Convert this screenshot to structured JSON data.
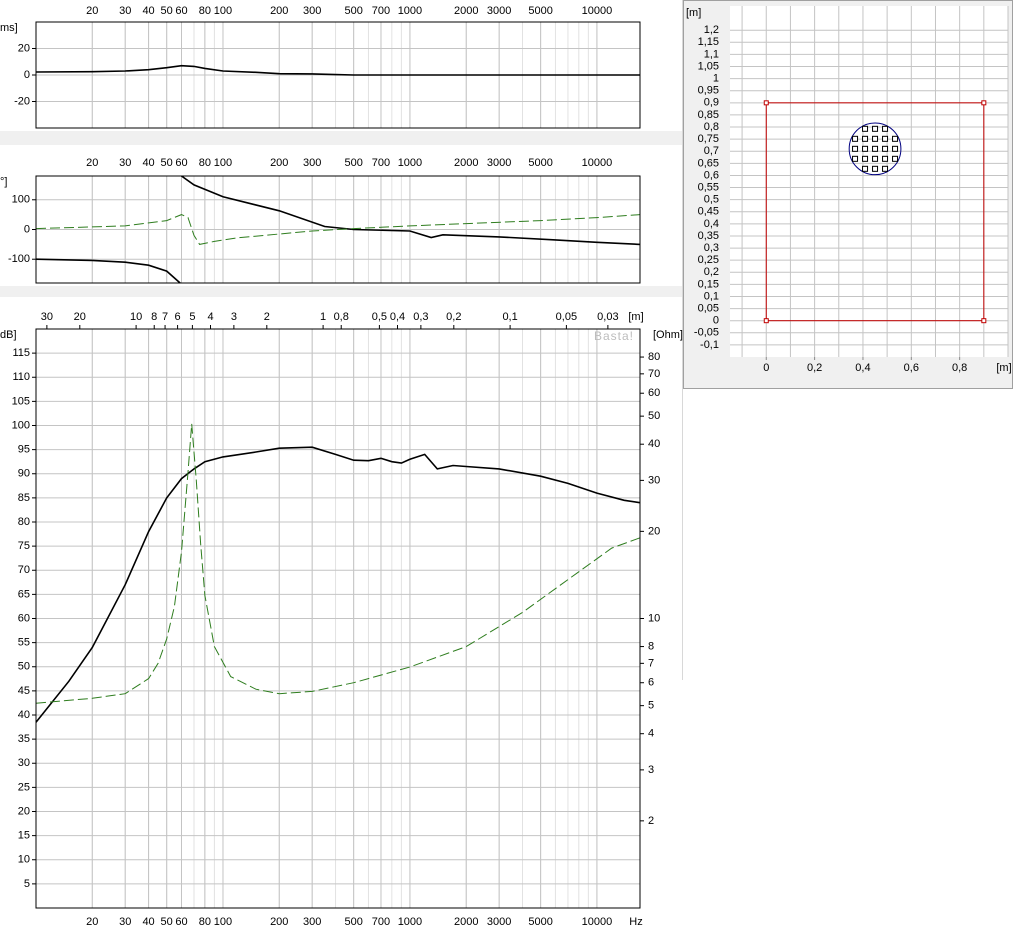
{
  "chart_data": [
    {
      "type": "line",
      "ylabel": "ms]",
      "xscale": "log",
      "xlim": [
        10,
        17000
      ],
      "xticks": [
        20,
        30,
        40,
        50,
        60,
        80,
        100,
        200,
        300,
        500,
        700,
        1000,
        2000,
        3000,
        5000,
        10000
      ],
      "xminorticks": [
        10,
        20,
        30,
        40,
        50,
        60,
        70,
        80,
        90,
        100,
        200,
        300,
        400,
        500,
        600,
        700,
        800,
        900,
        1000,
        2000,
        3000,
        4000,
        5000,
        6000,
        7000,
        8000,
        9000,
        10000
      ],
      "ylim": [
        -40,
        40
      ],
      "yticks": [
        -20,
        0,
        20
      ],
      "grid": true,
      "series": [
        {
          "color": "#000000",
          "x": [
            10,
            20,
            30,
            40,
            50,
            60,
            70,
            80,
            100,
            150,
            200,
            300,
            400,
            500,
            1000,
            5000,
            17000
          ],
          "values": [
            2.3,
            2.5,
            3,
            4,
            5.5,
            7,
            6.5,
            5,
            3,
            2,
            1,
            0.8,
            0.3,
            0,
            0,
            0,
            0
          ]
        }
      ]
    },
    {
      "type": "line",
      "ylabel": "°]",
      "xscale": "log",
      "xlim": [
        10,
        17000
      ],
      "xticks": [
        20,
        30,
        40,
        50,
        60,
        80,
        100,
        200,
        300,
        500,
        700,
        1000,
        2000,
        3000,
        5000,
        10000
      ],
      "xminorticks": [
        10,
        20,
        30,
        40,
        50,
        60,
        70,
        80,
        90,
        100,
        200,
        300,
        400,
        500,
        600,
        700,
        800,
        900,
        1000,
        2000,
        3000,
        4000,
        5000,
        6000,
        7000,
        8000,
        9000,
        10000
      ],
      "ylim": [
        -180,
        180
      ],
      "yticks": [
        -100,
        0,
        100
      ],
      "grid": true,
      "series": [
        {
          "color": "#000000",
          "x": [
            10,
            20,
            30,
            40,
            50,
            59,
            59.5,
            60,
            70,
            100,
            200,
            350,
            500,
            1000,
            1300,
            1500,
            3000,
            6000,
            10000,
            17000
          ],
          "values": [
            -100,
            -104,
            -110,
            -120,
            -140,
            -180,
            null,
            180,
            150,
            110,
            63,
            10,
            0,
            -5,
            -27,
            -18,
            -25,
            -35,
            -43,
            -50
          ]
        },
        {
          "color": "#2e7d1e",
          "dash": true,
          "x": [
            10,
            30,
            50,
            60,
            65,
            70,
            75,
            90,
            120,
            200,
            300,
            500,
            1000,
            2000,
            5000,
            10000,
            17000
          ],
          "values": [
            3,
            12,
            30,
            50,
            40,
            -20,
            -50,
            -40,
            -28,
            -15,
            -5,
            3,
            12,
            20,
            30,
            40,
            50
          ]
        }
      ]
    },
    {
      "type": "line",
      "ylabel": "dB]",
      "xlabel": "Hz",
      "annotation": "Basta!",
      "xscale": "log",
      "xlim": [
        10,
        17000
      ],
      "xticks": [
        20,
        30,
        40,
        50,
        60,
        80,
        100,
        200,
        300,
        500,
        700,
        1000,
        2000,
        3000,
        5000,
        10000
      ],
      "xminorticks": [
        10,
        20,
        30,
        40,
        50,
        60,
        70,
        80,
        90,
        100,
        200,
        300,
        400,
        500,
        600,
        700,
        800,
        900,
        1000,
        2000,
        3000,
        4000,
        5000,
        6000,
        7000,
        8000,
        9000,
        10000
      ],
      "x2label": "[m]",
      "x2lim": [
        34.3,
        0.0202
      ],
      "x2ticks": [
        30,
        20,
        10,
        8,
        7,
        6,
        5,
        4,
        3,
        2,
        1,
        {
          "value": 0.8,
          "label": "0,8"
        },
        {
          "value": 0.5,
          "label": "0,5"
        },
        {
          "value": 0.4,
          "label": "0,4"
        },
        {
          "value": 0.3,
          "label": "0,3"
        },
        {
          "value": 0.2,
          "label": "0,2"
        },
        {
          "value": 0.1,
          "label": "0,1"
        },
        {
          "value": 0.05,
          "label": "0,05"
        },
        {
          "value": 0.03,
          "label": "0,03"
        }
      ],
      "ylim": [
        0,
        120
      ],
      "yticks": [
        5,
        10,
        15,
        20,
        25,
        30,
        35,
        40,
        45,
        50,
        55,
        60,
        65,
        70,
        75,
        80,
        85,
        90,
        95,
        100,
        105,
        110,
        115
      ],
      "grid": true,
      "y2label": "[Ohm]",
      "y2scale": "log",
      "y2lim": [
        1,
        100
      ],
      "y2ticks": [
        2,
        3,
        4,
        5,
        6,
        7,
        8,
        10,
        20,
        30,
        40,
        50,
        60,
        70,
        80
      ],
      "series": [
        {
          "color": "#000000",
          "x": [
            10,
            15,
            20,
            30,
            40,
            50,
            60,
            70,
            80,
            100,
            150,
            200,
            300,
            400,
            500,
            600,
            700,
            800,
            900,
            1000,
            1200,
            1400,
            1700,
            2000,
            3000,
            5000,
            7000,
            10000,
            14000,
            17000
          ],
          "values": [
            38.5,
            47,
            54,
            67,
            78,
            85,
            89,
            91,
            92.5,
            93.5,
            94.5,
            95.3,
            95.5,
            94,
            92.8,
            92.7,
            93.2,
            92.5,
            92.2,
            93,
            94,
            91,
            91.7,
            91.5,
            91,
            89.5,
            88,
            86,
            84.5,
            84
          ]
        },
        {
          "color": "#2e7d1e",
          "dash": true,
          "axis": "y2",
          "x": [
            10,
            20,
            30,
            40,
            45,
            50,
            55,
            60,
            65,
            68,
            72,
            76,
            80,
            90,
            110,
            150,
            200,
            300,
            500,
            1000,
            2000,
            4000,
            8000,
            12000,
            17000
          ],
          "values": [
            5.1,
            5.3,
            5.5,
            6.2,
            7,
            8.5,
            11,
            17,
            32,
            47,
            30,
            18,
            12,
            8,
            6.3,
            5.7,
            5.5,
            5.6,
            6,
            6.8,
            8,
            10.5,
            14.5,
            17.5,
            19
          ]
        }
      ]
    },
    {
      "type": "plan",
      "xlabel": "[m]",
      "ylabel": "[m]",
      "xlim": [
        -0.15,
        1.0
      ],
      "ylim": [
        -0.15,
        1.3
      ],
      "xticks": [
        0,
        {
          "value": 0.2,
          "label": "0,2"
        },
        {
          "value": 0.4,
          "label": "0,4"
        },
        {
          "value": 0.6,
          "label": "0,6"
        },
        {
          "value": 0.8,
          "label": "0,8"
        }
      ],
      "xminorticks": [
        -0.1,
        0,
        0.1,
        0.2,
        0.3,
        0.4,
        0.5,
        0.6,
        0.7,
        0.8,
        0.9,
        1.0
      ],
      "yticks": [
        {
          "value": 1.2,
          "label": "1,2"
        },
        {
          "value": 1.15,
          "label": "1,15"
        },
        {
          "value": 1.1,
          "label": "1,1"
        },
        {
          "value": 1.05,
          "label": "1,05"
        },
        1,
        {
          "value": 0.95,
          "label": "0,95"
        },
        {
          "value": 0.9,
          "label": "0,9"
        },
        {
          "value": 0.85,
          "label": "0,85"
        },
        {
          "value": 0.8,
          "label": "0,8"
        },
        {
          "value": 0.75,
          "label": "0,75"
        },
        {
          "value": 0.7,
          "label": "0,7"
        },
        {
          "value": 0.65,
          "label": "0,65"
        },
        {
          "value": 0.6,
          "label": "0,6"
        },
        {
          "value": 0.55,
          "label": "0,55"
        },
        {
          "value": 0.5,
          "label": "0,5"
        },
        {
          "value": 0.45,
          "label": "0,45"
        },
        {
          "value": 0.4,
          "label": "0,4"
        },
        {
          "value": 0.35,
          "label": "0,35"
        },
        {
          "value": 0.3,
          "label": "0,3"
        },
        {
          "value": 0.25,
          "label": "0,25"
        },
        {
          "value": 0.2,
          "label": "0,2"
        },
        {
          "value": 0.15,
          "label": "0,15"
        },
        {
          "value": 0.1,
          "label": "0,1"
        },
        {
          "value": 0.05,
          "label": "0,05"
        },
        0,
        {
          "value": -0.05,
          "label": "-0,05"
        },
        {
          "value": -0.1,
          "label": "-0,1"
        }
      ],
      "grid": true,
      "baffle": {
        "x": [
          0,
          0.9
        ],
        "y": [
          0,
          0.9
        ],
        "color": "#c00000"
      },
      "driver": {
        "x": 0.45,
        "y": 0.71,
        "r": 0.107,
        "color": "#000080"
      }
    }
  ]
}
